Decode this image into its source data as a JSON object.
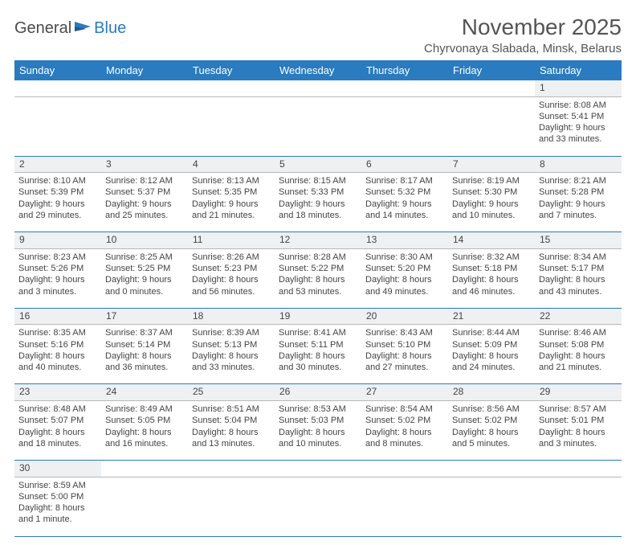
{
  "logo": {
    "general": "General",
    "blue": "Blue"
  },
  "title": "November 2025",
  "location": "Chyrvonaya Slabada, Minsk, Belarus",
  "colors": {
    "header_bg": "#2a7bbf",
    "header_fg": "#ffffff",
    "rule": "#2a7bbf",
    "daynum_bg": "#eef0f2"
  },
  "day_headers": [
    "Sunday",
    "Monday",
    "Tuesday",
    "Wednesday",
    "Thursday",
    "Friday",
    "Saturday"
  ],
  "weeks": [
    {
      "nums": [
        "",
        "",
        "",
        "",
        "",
        "",
        "1"
      ],
      "cells": [
        null,
        null,
        null,
        null,
        null,
        null,
        {
          "sunrise": "Sunrise: 8:08 AM",
          "sunset": "Sunset: 5:41 PM",
          "day1": "Daylight: 9 hours",
          "day2": "and 33 minutes."
        }
      ]
    },
    {
      "nums": [
        "2",
        "3",
        "4",
        "5",
        "6",
        "7",
        "8"
      ],
      "cells": [
        {
          "sunrise": "Sunrise: 8:10 AM",
          "sunset": "Sunset: 5:39 PM",
          "day1": "Daylight: 9 hours",
          "day2": "and 29 minutes."
        },
        {
          "sunrise": "Sunrise: 8:12 AM",
          "sunset": "Sunset: 5:37 PM",
          "day1": "Daylight: 9 hours",
          "day2": "and 25 minutes."
        },
        {
          "sunrise": "Sunrise: 8:13 AM",
          "sunset": "Sunset: 5:35 PM",
          "day1": "Daylight: 9 hours",
          "day2": "and 21 minutes."
        },
        {
          "sunrise": "Sunrise: 8:15 AM",
          "sunset": "Sunset: 5:33 PM",
          "day1": "Daylight: 9 hours",
          "day2": "and 18 minutes."
        },
        {
          "sunrise": "Sunrise: 8:17 AM",
          "sunset": "Sunset: 5:32 PM",
          "day1": "Daylight: 9 hours",
          "day2": "and 14 minutes."
        },
        {
          "sunrise": "Sunrise: 8:19 AM",
          "sunset": "Sunset: 5:30 PM",
          "day1": "Daylight: 9 hours",
          "day2": "and 10 minutes."
        },
        {
          "sunrise": "Sunrise: 8:21 AM",
          "sunset": "Sunset: 5:28 PM",
          "day1": "Daylight: 9 hours",
          "day2": "and 7 minutes."
        }
      ]
    },
    {
      "nums": [
        "9",
        "10",
        "11",
        "12",
        "13",
        "14",
        "15"
      ],
      "cells": [
        {
          "sunrise": "Sunrise: 8:23 AM",
          "sunset": "Sunset: 5:26 PM",
          "day1": "Daylight: 9 hours",
          "day2": "and 3 minutes."
        },
        {
          "sunrise": "Sunrise: 8:25 AM",
          "sunset": "Sunset: 5:25 PM",
          "day1": "Daylight: 9 hours",
          "day2": "and 0 minutes."
        },
        {
          "sunrise": "Sunrise: 8:26 AM",
          "sunset": "Sunset: 5:23 PM",
          "day1": "Daylight: 8 hours",
          "day2": "and 56 minutes."
        },
        {
          "sunrise": "Sunrise: 8:28 AM",
          "sunset": "Sunset: 5:22 PM",
          "day1": "Daylight: 8 hours",
          "day2": "and 53 minutes."
        },
        {
          "sunrise": "Sunrise: 8:30 AM",
          "sunset": "Sunset: 5:20 PM",
          "day1": "Daylight: 8 hours",
          "day2": "and 49 minutes."
        },
        {
          "sunrise": "Sunrise: 8:32 AM",
          "sunset": "Sunset: 5:18 PM",
          "day1": "Daylight: 8 hours",
          "day2": "and 46 minutes."
        },
        {
          "sunrise": "Sunrise: 8:34 AM",
          "sunset": "Sunset: 5:17 PM",
          "day1": "Daylight: 8 hours",
          "day2": "and 43 minutes."
        }
      ]
    },
    {
      "nums": [
        "16",
        "17",
        "18",
        "19",
        "20",
        "21",
        "22"
      ],
      "cells": [
        {
          "sunrise": "Sunrise: 8:35 AM",
          "sunset": "Sunset: 5:16 PM",
          "day1": "Daylight: 8 hours",
          "day2": "and 40 minutes."
        },
        {
          "sunrise": "Sunrise: 8:37 AM",
          "sunset": "Sunset: 5:14 PM",
          "day1": "Daylight: 8 hours",
          "day2": "and 36 minutes."
        },
        {
          "sunrise": "Sunrise: 8:39 AM",
          "sunset": "Sunset: 5:13 PM",
          "day1": "Daylight: 8 hours",
          "day2": "and 33 minutes."
        },
        {
          "sunrise": "Sunrise: 8:41 AM",
          "sunset": "Sunset: 5:11 PM",
          "day1": "Daylight: 8 hours",
          "day2": "and 30 minutes."
        },
        {
          "sunrise": "Sunrise: 8:43 AM",
          "sunset": "Sunset: 5:10 PM",
          "day1": "Daylight: 8 hours",
          "day2": "and 27 minutes."
        },
        {
          "sunrise": "Sunrise: 8:44 AM",
          "sunset": "Sunset: 5:09 PM",
          "day1": "Daylight: 8 hours",
          "day2": "and 24 minutes."
        },
        {
          "sunrise": "Sunrise: 8:46 AM",
          "sunset": "Sunset: 5:08 PM",
          "day1": "Daylight: 8 hours",
          "day2": "and 21 minutes."
        }
      ]
    },
    {
      "nums": [
        "23",
        "24",
        "25",
        "26",
        "27",
        "28",
        "29"
      ],
      "cells": [
        {
          "sunrise": "Sunrise: 8:48 AM",
          "sunset": "Sunset: 5:07 PM",
          "day1": "Daylight: 8 hours",
          "day2": "and 18 minutes."
        },
        {
          "sunrise": "Sunrise: 8:49 AM",
          "sunset": "Sunset: 5:05 PM",
          "day1": "Daylight: 8 hours",
          "day2": "and 16 minutes."
        },
        {
          "sunrise": "Sunrise: 8:51 AM",
          "sunset": "Sunset: 5:04 PM",
          "day1": "Daylight: 8 hours",
          "day2": "and 13 minutes."
        },
        {
          "sunrise": "Sunrise: 8:53 AM",
          "sunset": "Sunset: 5:03 PM",
          "day1": "Daylight: 8 hours",
          "day2": "and 10 minutes."
        },
        {
          "sunrise": "Sunrise: 8:54 AM",
          "sunset": "Sunset: 5:02 PM",
          "day1": "Daylight: 8 hours",
          "day2": "and 8 minutes."
        },
        {
          "sunrise": "Sunrise: 8:56 AM",
          "sunset": "Sunset: 5:02 PM",
          "day1": "Daylight: 8 hours",
          "day2": "and 5 minutes."
        },
        {
          "sunrise": "Sunrise: 8:57 AM",
          "sunset": "Sunset: 5:01 PM",
          "day1": "Daylight: 8 hours",
          "day2": "and 3 minutes."
        }
      ]
    },
    {
      "nums": [
        "30",
        "",
        "",
        "",
        "",
        "",
        ""
      ],
      "cells": [
        {
          "sunrise": "Sunrise: 8:59 AM",
          "sunset": "Sunset: 5:00 PM",
          "day1": "Daylight: 8 hours",
          "day2": "and 1 minute."
        },
        null,
        null,
        null,
        null,
        null,
        null
      ]
    }
  ]
}
